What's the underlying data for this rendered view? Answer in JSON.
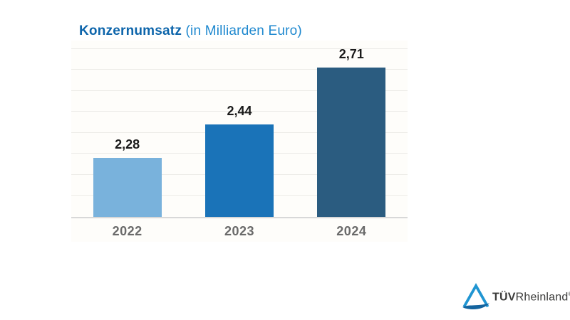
{
  "header": {
    "title_bold": "Konzernumsatz",
    "title_rest": " (in Milliarden Euro)",
    "title_bold_color": "#0d65ab",
    "title_rest_color": "#1e88cf"
  },
  "chart_data": {
    "type": "bar",
    "title": "Konzernumsatz (in Milliarden Euro)",
    "categories": [
      "2022",
      "2023",
      "2024"
    ],
    "values": [
      2.28,
      2.44,
      2.71
    ],
    "value_labels": [
      "2,28",
      "2,44",
      "2,71"
    ],
    "bar_colors": [
      "#79b2dc",
      "#1a73b8",
      "#2b5c80"
    ],
    "xlabel": "",
    "ylabel": "Milliarden Euro",
    "ylim": [
      2.0,
      2.84
    ],
    "gridline_step": 0.1,
    "grid": true,
    "legend": false
  },
  "logo": {
    "brand_bold": "TÜV",
    "brand_rest": "Rheinland",
    "registered": "®",
    "triangle_color": "#2095d2",
    "swoosh_color": "#14649f",
    "text_color": "#3b3b3a"
  }
}
